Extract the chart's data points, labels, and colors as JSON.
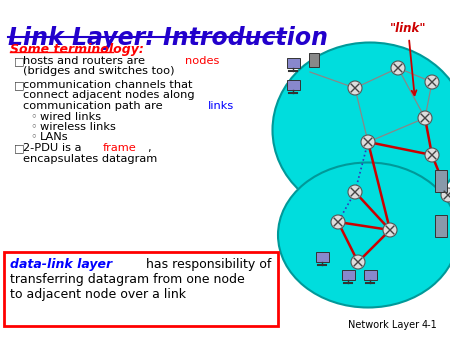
{
  "title": "Link Layer: Introduction",
  "title_color": "#2200CC",
  "background_color": "#FFFFFF",
  "subtitle": "Some terminology:",
  "subtitle_color": "#FF0000",
  "highlight_datalinklayer_color": "#0000FF",
  "network_blob_color": "#00DDDD",
  "network_blob_edge": "#009999",
  "link_arrow_color": "#CC0000",
  "link_label": "\"link\"",
  "link_label_color": "#CC0000",
  "bottom_box_border_color": "#FF0000",
  "bottom_box_bg": "#FFFFFF",
  "footer_text": "Network Layer",
  "footer_number": "4-1",
  "footer_color": "#000000",
  "bullets": [
    {
      "level": 0,
      "parts": [
        {
          "text": "hosts and routers are ",
          "color": "#000000"
        },
        {
          "text": "nodes",
          "color": "#FF0000"
        },
        {
          "text": " ",
          "color": "#000000"
        }
      ],
      "line2": "(bridges and switches too)"
    },
    {
      "level": 0,
      "parts": [
        {
          "text": "communication channels that",
          "color": "#000000"
        }
      ],
      "line2": "connect adjacent nodes along",
      "line3": "communication path are ",
      "line3end_text": "links",
      "line3end_color": "#0000FF"
    },
    {
      "level": 1,
      "parts": [
        {
          "text": "wired links",
          "color": "#000000"
        }
      ]
    },
    {
      "level": 1,
      "parts": [
        {
          "text": "wireless links",
          "color": "#000000"
        }
      ]
    },
    {
      "level": 1,
      "parts": [
        {
          "text": "LANs",
          "color": "#000000"
        }
      ]
    },
    {
      "level": 0,
      "parts": [
        {
          "text": "2-PDU is a ",
          "color": "#000000"
        },
        {
          "text": "frame",
          "color": "#FF0000"
        },
        {
          "text": ", ",
          "color": "#000000"
        }
      ],
      "line2": "encapsulates datagram"
    }
  ]
}
